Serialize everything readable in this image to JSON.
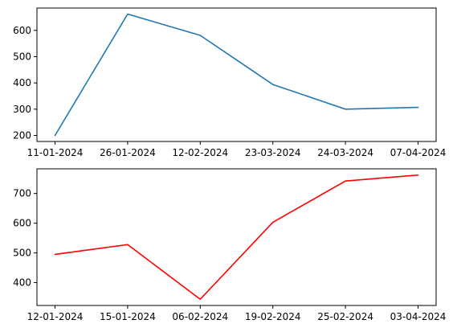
{
  "chart_data": [
    {
      "type": "line",
      "x": [
        "11-01-2024",
        "26-01-2024",
        "12-02-2024",
        "23-03-2024",
        "24-03-2024",
        "07-04-2024"
      ],
      "values": [
        200,
        662,
        581,
        394,
        300,
        307
      ],
      "color": "#1f77b4",
      "ylim": [
        177,
        685
      ],
      "yticks": [
        200,
        300,
        400,
        500,
        600
      ],
      "title": "",
      "xlabel": "",
      "ylabel": "",
      "grid": false
    },
    {
      "type": "line",
      "x": [
        "12-01-2024",
        "15-01-2024",
        "06-02-2024",
        "19-02-2024",
        "25-02-2024",
        "03-04-2024"
      ],
      "values": [
        495,
        528,
        344,
        603,
        742,
        762
      ],
      "color": "#ff0000",
      "ylim": [
        323,
        783
      ],
      "yticks": [
        400,
        500,
        600,
        700
      ],
      "title": "",
      "xlabel": "",
      "ylabel": "",
      "grid": false
    }
  ]
}
